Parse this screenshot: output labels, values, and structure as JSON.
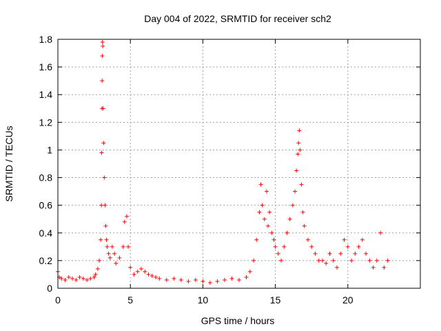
{
  "chart_data": {
    "type": "scatter",
    "title": "Day 004 of 2022, SRMTID for receiver sch2",
    "xlabel": "GPS time / hours",
    "ylabel": "SRMTID / TECUs",
    "xlim": [
      0,
      25
    ],
    "ylim": [
      0,
      1.8
    ],
    "xticks": [
      "0",
      "5",
      "10",
      "15",
      "20"
    ],
    "yticks": [
      "0",
      "0.2",
      "0.4",
      "0.6",
      "0.8",
      "1",
      "1.2",
      "1.4",
      "1.6",
      "1.8"
    ],
    "grid": true,
    "marker": "+",
    "color": "#ff0000",
    "series": [
      {
        "name": "sch2",
        "x": [
          0.0,
          0.1,
          0.25,
          0.5,
          0.75,
          1.0,
          1.25,
          1.5,
          1.75,
          2.0,
          2.25,
          2.5,
          2.6,
          2.75,
          2.85,
          2.95,
          3.0,
          3.02,
          3.04,
          3.05,
          3.06,
          3.08,
          3.1,
          3.12,
          3.15,
          3.2,
          3.25,
          3.3,
          3.35,
          3.4,
          3.5,
          3.6,
          3.75,
          3.9,
          4.0,
          4.25,
          4.5,
          4.6,
          4.75,
          4.85,
          5.0,
          5.25,
          5.5,
          5.75,
          6.0,
          6.25,
          6.5,
          6.75,
          7.0,
          7.5,
          8.0,
          8.5,
          9.0,
          9.5,
          10.0,
          10.5,
          11.0,
          11.5,
          12.0,
          12.5,
          13.0,
          13.25,
          13.5,
          13.7,
          13.9,
          14.0,
          14.1,
          14.25,
          14.4,
          14.5,
          14.6,
          14.75,
          14.9,
          15.0,
          15.2,
          15.4,
          15.6,
          15.8,
          16.0,
          16.2,
          16.35,
          16.45,
          16.55,
          16.6,
          16.65,
          16.7,
          16.8,
          16.9,
          17.0,
          17.25,
          17.5,
          17.75,
          18.0,
          18.25,
          18.5,
          18.75,
          19.0,
          19.25,
          19.5,
          19.75,
          20.0,
          20.25,
          20.5,
          20.75,
          21.0,
          21.25,
          21.5,
          21.75,
          22.0,
          22.25,
          22.5,
          22.75
        ],
        "y": [
          0.12,
          0.08,
          0.07,
          0.06,
          0.08,
          0.07,
          0.06,
          0.08,
          0.07,
          0.06,
          0.07,
          0.08,
          0.1,
          0.14,
          0.2,
          0.35,
          0.6,
          0.98,
          1.3,
          1.5,
          1.68,
          1.78,
          1.75,
          1.3,
          1.05,
          0.8,
          0.6,
          0.45,
          0.35,
          0.3,
          0.25,
          0.22,
          0.3,
          0.25,
          0.18,
          0.22,
          0.3,
          0.48,
          0.52,
          0.3,
          0.15,
          0.1,
          0.12,
          0.14,
          0.12,
          0.1,
          0.09,
          0.08,
          0.07,
          0.06,
          0.07,
          0.06,
          0.05,
          0.06,
          0.05,
          0.04,
          0.05,
          0.06,
          0.07,
          0.06,
          0.08,
          0.12,
          0.2,
          0.35,
          0.55,
          0.75,
          0.6,
          0.5,
          0.7,
          0.45,
          0.55,
          0.4,
          0.35,
          0.3,
          0.25,
          0.2,
          0.3,
          0.4,
          0.5,
          0.6,
          0.7,
          0.85,
          0.97,
          1.05,
          1.14,
          1.0,
          0.75,
          0.55,
          0.45,
          0.35,
          0.3,
          0.25,
          0.2,
          0.2,
          0.18,
          0.25,
          0.2,
          0.15,
          0.25,
          0.35,
          0.3,
          0.2,
          0.25,
          0.3,
          0.35,
          0.25,
          0.2,
          0.15,
          0.2,
          0.4,
          0.15,
          0.2
        ]
      }
    ]
  }
}
